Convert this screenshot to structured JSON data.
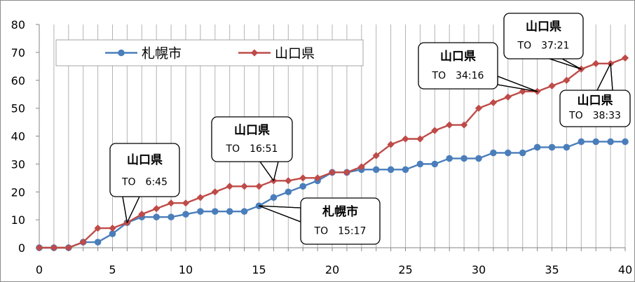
{
  "chart_data": {
    "type": "line",
    "title": "",
    "xlabel": "",
    "ylabel": "",
    "xlim": [
      0,
      40
    ],
    "ylim": [
      0,
      80
    ],
    "x_ticks": [
      0,
      5,
      10,
      15,
      20,
      25,
      30,
      35,
      40
    ],
    "y_ticks": [
      0,
      10,
      20,
      30,
      40,
      50,
      60,
      70,
      80
    ],
    "grid": "vertical lines at each x",
    "legend_position": "top-left",
    "x": [
      0,
      1,
      2,
      3,
      4,
      5,
      6,
      7,
      8,
      9,
      10,
      11,
      12,
      13,
      14,
      15,
      16,
      17,
      18,
      19,
      20,
      21,
      22,
      23,
      24,
      25,
      26,
      27,
      28,
      29,
      30,
      31,
      32,
      33,
      34,
      35,
      36,
      37,
      38,
      39,
      40
    ],
    "series": [
      {
        "name": "札幌市",
        "color": "#4a7ebb",
        "marker": "circle",
        "values": [
          0,
          0,
          0,
          2,
          2,
          5,
          9,
          11,
          11,
          11,
          12,
          13,
          13,
          13,
          13,
          15,
          18,
          20,
          22,
          24,
          27,
          27,
          28,
          28,
          28,
          28,
          30,
          30,
          32,
          32,
          32,
          34,
          34,
          34,
          36,
          36,
          36,
          38,
          38,
          38,
          38
        ]
      },
      {
        "name": "山口県",
        "color": "#be4b48",
        "marker": "diamond",
        "values": [
          0,
          0,
          0,
          2,
          7,
          7,
          9,
          12,
          14,
          16,
          16,
          18,
          20,
          22,
          22,
          22,
          24,
          24,
          25,
          25,
          27,
          27,
          29,
          33,
          37,
          39,
          39,
          42,
          44,
          44,
          50,
          52,
          54,
          56,
          56,
          58,
          60,
          64,
          66,
          66,
          68
        ]
      }
    ],
    "annotations": [
      {
        "title": "山口県",
        "sub": "TO　6:45",
        "x": 6,
        "y": 9
      },
      {
        "title": "山口県",
        "sub": "TO　16:51",
        "x": 16,
        "y": 24
      },
      {
        "title": "札幌市",
        "sub": "TO　15:17",
        "x": 15,
        "y": 15
      },
      {
        "title": "山口県",
        "sub": "TO　34:16",
        "x": 34,
        "y": 56
      },
      {
        "title": "山口県",
        "sub": "TO　37:21",
        "x": 37,
        "y": 64
      },
      {
        "title": "山口県",
        "sub": "TO　38:33",
        "x": 39,
        "y": 66
      }
    ]
  }
}
